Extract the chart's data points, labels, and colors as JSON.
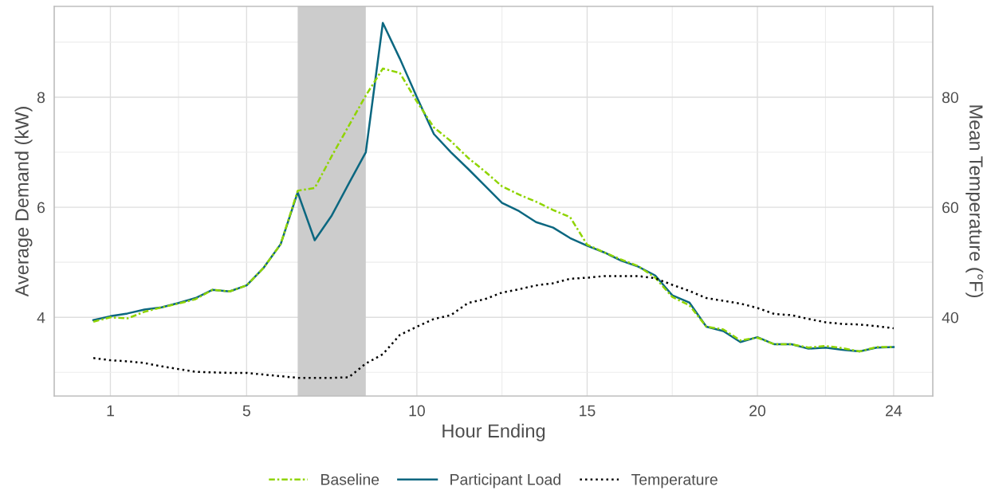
{
  "chart_data": {
    "type": "line",
    "xlabel": "Hour Ending",
    "ylabel": "Average Demand (kW)",
    "y2label": "Mean Temperature (°F)",
    "x": [
      0.5,
      1,
      1.5,
      2,
      2.5,
      3,
      3.5,
      4,
      4.5,
      5,
      5.5,
      6,
      6.5,
      7,
      7.5,
      8,
      8.5,
      9,
      9.5,
      10,
      10.5,
      11,
      11.5,
      12,
      12.5,
      13,
      13.5,
      14,
      14.5,
      15,
      15.5,
      16,
      16.5,
      17,
      17.5,
      18,
      18.5,
      19,
      19.5,
      20,
      20.5,
      21,
      21.5,
      22,
      22.5,
      23,
      23.5,
      24
    ],
    "series": [
      {
        "name": "Baseline",
        "color": "#8fd400",
        "line_style": "dashdot",
        "values": [
          3.92,
          4.0,
          3.98,
          4.1,
          4.18,
          4.25,
          4.33,
          4.5,
          4.47,
          4.58,
          4.9,
          5.33,
          6.3,
          6.35,
          6.93,
          7.48,
          8.03,
          8.52,
          8.44,
          7.92,
          7.45,
          7.2,
          6.9,
          6.65,
          6.38,
          6.23,
          6.1,
          5.95,
          5.82,
          5.32,
          5.18,
          5.05,
          4.93,
          4.72,
          4.37,
          4.22,
          3.83,
          3.78,
          3.58,
          3.63,
          3.51,
          3.51,
          3.45,
          3.48,
          3.44,
          3.38,
          3.46,
          3.46
        ]
      },
      {
        "name": "Participant Load",
        "color": "#0b6780",
        "line_style": "solid",
        "values": [
          3.95,
          4.02,
          4.07,
          4.14,
          4.18,
          4.26,
          4.35,
          4.5,
          4.47,
          4.58,
          4.9,
          5.33,
          6.27,
          5.4,
          5.85,
          6.43,
          7.0,
          9.35,
          8.7,
          8.0,
          7.33,
          7.0,
          6.7,
          6.39,
          6.08,
          5.93,
          5.73,
          5.63,
          5.44,
          5.3,
          5.18,
          5.03,
          4.92,
          4.76,
          4.4,
          4.27,
          3.83,
          3.75,
          3.55,
          3.64,
          3.51,
          3.51,
          3.43,
          3.45,
          3.41,
          3.38,
          3.45,
          3.46
        ]
      },
      {
        "name": "Temperature",
        "color": "#000000",
        "line_style": "dotted",
        "axis": "y2",
        "values": [
          32.6,
          32.2,
          32.0,
          31.7,
          31.1,
          30.6,
          30.1,
          30.0,
          29.9,
          29.9,
          29.6,
          29.3,
          29.0,
          29.0,
          29.0,
          29.1,
          31.6,
          33.3,
          36.8,
          38.3,
          39.7,
          40.4,
          42.6,
          43.3,
          44.5,
          45.1,
          45.8,
          46.2,
          47.0,
          47.2,
          47.5,
          47.5,
          47.5,
          47.1,
          45.9,
          44.8,
          43.5,
          43.0,
          42.5,
          41.7,
          40.6,
          40.4,
          39.7,
          39.1,
          38.8,
          38.7,
          38.4,
          38.0
        ]
      }
    ],
    "bands": [
      {
        "axis": "x",
        "from": 6.5,
        "to": 8.5,
        "color": "#cccccc"
      }
    ],
    "xlim": [
      -0.65,
      25.15
    ],
    "xticks": [
      1,
      5,
      10,
      15,
      20,
      24
    ],
    "ylim": [
      2.57,
      9.65
    ],
    "yticks": [
      4,
      6,
      8
    ],
    "y2lim": [
      25.7,
      96.5
    ],
    "y2ticks": [
      40,
      60,
      80
    ],
    "grid": true,
    "legend": "bottom"
  }
}
